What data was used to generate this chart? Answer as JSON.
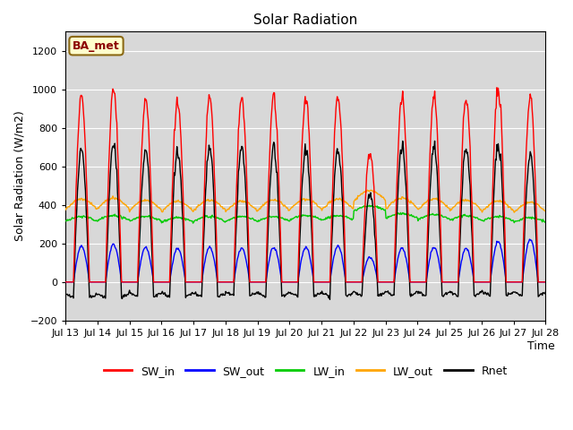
{
  "title": "Solar Radiation",
  "ylabel": "Solar Radiation (W/m2)",
  "xlabel": "Time",
  "ylim": [
    -200,
    1300
  ],
  "yticks": [
    -200,
    0,
    200,
    400,
    600,
    800,
    1000,
    1200
  ],
  "num_days": 15,
  "points_per_day": 48,
  "colors": {
    "SW_in": "#ff0000",
    "SW_out": "#0000ff",
    "LW_in": "#00cc00",
    "LW_out": "#ffa500",
    "Rnet": "#000000"
  },
  "line_widths": {
    "SW_in": 1.0,
    "SW_out": 1.0,
    "LW_in": 1.0,
    "LW_out": 1.0,
    "Rnet": 1.0
  },
  "bg_color": "#d8d8d8",
  "annotation_text": "BA_met",
  "annotation_facecolor": "#ffffcc",
  "annotation_edgecolor": "#8b6914",
  "xtick_labels": [
    "Jul 13",
    "Jul 14",
    "Jul 15",
    "Jul 16",
    "Jul 17",
    "Jul 18",
    "Jul 19",
    "Jul 20",
    "Jul 21",
    "Jul 22",
    "Jul 23",
    "Jul 24",
    "Jul 25",
    "Jul 26",
    "Jul 27",
    "Jul 28"
  ],
  "legend_labels": [
    "SW_in",
    "SW_out",
    "LW_in",
    "LW_out",
    "Rnet"
  ],
  "sw_peaks": [
    970,
    1000,
    945,
    940,
    965,
    950,
    960,
    950,
    970,
    680,
    960,
    960,
    955,
    1010,
    960
  ],
  "sw_out_peaks": [
    185,
    195,
    180,
    175,
    180,
    175,
    180,
    180,
    185,
    130,
    175,
    180,
    175,
    210,
    220
  ],
  "lw_in_base": [
    315,
    320,
    315,
    310,
    315,
    315,
    315,
    320,
    320,
    370,
    330,
    325,
    320,
    315,
    310
  ],
  "lw_out_base": [
    375,
    380,
    370,
    365,
    370,
    365,
    370,
    375,
    375,
    420,
    380,
    375,
    370,
    365,
    360
  ]
}
